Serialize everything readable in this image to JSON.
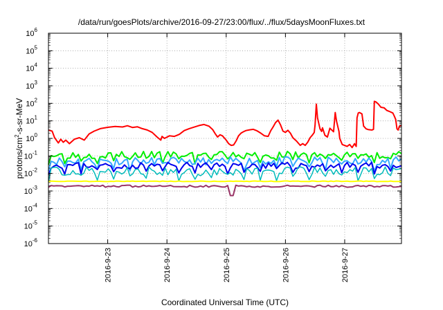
{
  "chart_data": {
    "type": "line",
    "title": "/data/run/goesPlots/archive/2016-09-27/23:00/flux/../flux/5daysMoonFluxes.txt",
    "xlabel": "Coordinated Universal Time (UTC)",
    "ylabel_main": "protons/cm",
    "ylabel_sup": "2",
    "ylabel_tail": "-s-sr-MeV",
    "yscale": "log",
    "ylim": [
      1e-06,
      1000000.0
    ],
    "xlim": [
      "2016-09-22T00:00",
      "2016-09-27T23:00"
    ],
    "grid": true,
    "yticks": [
      {
        "value": 1e-06,
        "base": "10",
        "exp": "-6"
      },
      {
        "value": 1e-05,
        "base": "10",
        "exp": "-5"
      },
      {
        "value": 0.0001,
        "base": "10",
        "exp": "-4"
      },
      {
        "value": 0.001,
        "base": "10",
        "exp": "-3"
      },
      {
        "value": 0.01,
        "base": "10",
        "exp": "-2"
      },
      {
        "value": 0.1,
        "base": "10",
        "exp": "-1"
      },
      {
        "value": 1,
        "base": "10",
        "exp": "0"
      },
      {
        "value": 10.0,
        "base": "10",
        "exp": "1"
      },
      {
        "value": 100.0,
        "base": "10",
        "exp": "2"
      },
      {
        "value": 1000.0,
        "base": "10",
        "exp": "3"
      },
      {
        "value": 10000.0,
        "base": "10",
        "exp": "4"
      },
      {
        "value": 100000.0,
        "base": "10",
        "exp": "5"
      },
      {
        "value": 1000000.0,
        "base": "10",
        "exp": "6"
      }
    ],
    "xticks": [
      {
        "value": "2016-09-23T00:00",
        "label": "2016-9-23"
      },
      {
        "value": "2016-09-24T00:00",
        "label": "2016-9-24"
      },
      {
        "value": "2016-09-25T00:00",
        "label": "2016-9-25"
      },
      {
        "value": "2016-09-26T00:00",
        "label": "2016-9-26"
      },
      {
        "value": "2016-09-27T00:00",
        "label": "2016-9-27"
      }
    ],
    "series": [
      {
        "color": "#ff0000",
        "width": 2,
        "points": [
          [
            "2016-09-22T00:00",
            3
          ],
          [
            "2016-09-22T01:30",
            2.6
          ],
          [
            "2016-09-22T02:30",
            1.1
          ],
          [
            "2016-09-22T04:00",
            0.55
          ],
          [
            "2016-09-22T05:00",
            0.9
          ],
          [
            "2016-09-22T06:00",
            0.6
          ],
          [
            "2016-09-22T07:00",
            0.8
          ],
          [
            "2016-09-22T08:30",
            0.5
          ],
          [
            "2016-09-22T10:30",
            0.9
          ],
          [
            "2016-09-22T12:30",
            1.1
          ],
          [
            "2016-09-22T14:30",
            0.8
          ],
          [
            "2016-09-22T16:30",
            1.8
          ],
          [
            "2016-09-22T18:30",
            2.6
          ],
          [
            "2016-09-22T21:00",
            3.6
          ],
          [
            "2016-09-23T00:00",
            4.3
          ],
          [
            "2016-09-23T03:00",
            4.8
          ],
          [
            "2016-09-23T06:00",
            4.5
          ],
          [
            "2016-09-23T08:00",
            5.3
          ],
          [
            "2016-09-23T10:00",
            4.2
          ],
          [
            "2016-09-23T12:00",
            4.6
          ],
          [
            "2016-09-23T14:00",
            3.6
          ],
          [
            "2016-09-23T16:00",
            3
          ],
          [
            "2016-09-23T18:00",
            2.2
          ],
          [
            "2016-09-23T20:00",
            1.2
          ],
          [
            "2016-09-23T21:30",
            0.8
          ],
          [
            "2016-09-23T22:00",
            1.3
          ],
          [
            "2016-09-23T23:00",
            1
          ],
          [
            "2016-09-24T01:00",
            1.4
          ],
          [
            "2016-09-24T03:00",
            1.3
          ],
          [
            "2016-09-24T05:00",
            1.7
          ],
          [
            "2016-09-24T07:00",
            2.8
          ],
          [
            "2016-09-24T09:00",
            3.6
          ],
          [
            "2016-09-24T11:00",
            4.4
          ],
          [
            "2016-09-24T13:00",
            5.4
          ],
          [
            "2016-09-24T15:00",
            6.2
          ],
          [
            "2016-09-24T17:00",
            5
          ],
          [
            "2016-09-24T18:30",
            3.2
          ],
          [
            "2016-09-24T19:30",
            1.9
          ],
          [
            "2016-09-24T20:30",
            1.2
          ],
          [
            "2016-09-24T21:30",
            1.6
          ],
          [
            "2016-09-24T22:30",
            1.4
          ],
          [
            "2016-09-25T00:00",
            0.8
          ],
          [
            "2016-09-25T01:00",
            0.5
          ],
          [
            "2016-09-25T02:00",
            0.4
          ],
          [
            "2016-09-25T03:00",
            0.42
          ],
          [
            "2016-09-25T04:00",
            0.7
          ],
          [
            "2016-09-25T05:00",
            1.4
          ],
          [
            "2016-09-25T06:00",
            2
          ],
          [
            "2016-09-25T07:00",
            2.4
          ],
          [
            "2016-09-25T08:00",
            2.8
          ],
          [
            "2016-09-25T09:30",
            3.1
          ],
          [
            "2016-09-25T11:00",
            3.3
          ],
          [
            "2016-09-25T12:30",
            2.7
          ],
          [
            "2016-09-25T14:00",
            2
          ],
          [
            "2016-09-25T15:30",
            1.4
          ],
          [
            "2016-09-25T17:00",
            1.3
          ],
          [
            "2016-09-25T18:00",
            2.7
          ],
          [
            "2016-09-25T19:00",
            4.5
          ],
          [
            "2016-09-25T20:00",
            8
          ],
          [
            "2016-09-25T21:00",
            11
          ],
          [
            "2016-09-25T22:00",
            6
          ],
          [
            "2016-09-25T23:00",
            2.6
          ],
          [
            "2016-09-26T00:00",
            2.2
          ],
          [
            "2016-09-26T01:00",
            2.9
          ],
          [
            "2016-09-26T02:00",
            2
          ],
          [
            "2016-09-26T03:00",
            1.1
          ],
          [
            "2016-09-26T04:30",
            0.7
          ],
          [
            "2016-09-26T06:00",
            0.4
          ],
          [
            "2016-09-26T07:00",
            0.5
          ],
          [
            "2016-09-26T08:00",
            0.4
          ],
          [
            "2016-09-26T09:00",
            0.6
          ],
          [
            "2016-09-26T10:00",
            1.1
          ],
          [
            "2016-09-26T11:00",
            1.6
          ],
          [
            "2016-09-26T11:40",
            2.2
          ],
          [
            "2016-09-26T12:00",
            6
          ],
          [
            "2016-09-26T12:30",
            90
          ],
          [
            "2016-09-26T13:00",
            15
          ],
          [
            "2016-09-26T14:00",
            3.5
          ],
          [
            "2016-09-26T14:40",
            2.5
          ],
          [
            "2016-09-26T15:00",
            4
          ],
          [
            "2016-09-26T16:00",
            1.5
          ],
          [
            "2016-09-26T17:00",
            1.2
          ],
          [
            "2016-09-26T18:00",
            3.8
          ],
          [
            "2016-09-26T19:30",
            2.4
          ],
          [
            "2016-09-26T20:10",
            30
          ],
          [
            "2016-09-26T20:40",
            10
          ],
          [
            "2016-09-26T21:10",
            5
          ],
          [
            "2016-09-26T21:40",
            2.5
          ],
          [
            "2016-09-26T22:00",
            1
          ],
          [
            "2016-09-26T23:00",
            0.45
          ],
          [
            "2016-09-27T01:00",
            0.35
          ],
          [
            "2016-09-27T02:00",
            0.45
          ],
          [
            "2016-09-27T03:00",
            0.3
          ],
          [
            "2016-09-27T04:00",
            0.5
          ],
          [
            "2016-09-27T04:40",
            0.35
          ],
          [
            "2016-09-27T05:00",
            15
          ],
          [
            "2016-09-27T05:30",
            28
          ],
          [
            "2016-09-27T06:00",
            30
          ],
          [
            "2016-09-27T07:00",
            25
          ],
          [
            "2016-09-27T07:40",
            5
          ],
          [
            "2016-09-27T08:00",
            4.5
          ],
          [
            "2016-09-27T08:40",
            3.5
          ],
          [
            "2016-09-27T09:30",
            3.2
          ],
          [
            "2016-09-27T11:00",
            3
          ],
          [
            "2016-09-27T11:40",
            3.3
          ],
          [
            "2016-09-27T12:00",
            130
          ],
          [
            "2016-09-27T12:40",
            120
          ],
          [
            "2016-09-27T13:40",
            90
          ],
          [
            "2016-09-27T14:40",
            60
          ],
          [
            "2016-09-27T16:00",
            55
          ],
          [
            "2016-09-27T17:00",
            40
          ],
          [
            "2016-09-27T18:00",
            35
          ],
          [
            "2016-09-27T19:30",
            28
          ],
          [
            "2016-09-27T20:00",
            20
          ],
          [
            "2016-09-27T20:40",
            12
          ],
          [
            "2016-09-27T21:10",
            3.5
          ],
          [
            "2016-09-27T21:40",
            3
          ],
          [
            "2016-09-27T22:10",
            5
          ],
          [
            "2016-09-27T23:00",
            5.2
          ]
        ]
      },
      {
        "color": "#00ee00",
        "width": 2,
        "base": 0.12,
        "amp": 0.4,
        "seed": 3,
        "n": 130
      },
      {
        "color": "#33aaff",
        "width": 2,
        "base": 0.055,
        "amp": 0.45,
        "seed": 11,
        "n": 130
      },
      {
        "color": "#0000ee",
        "width": 2,
        "base": 0.03,
        "amp": 0.35,
        "seed": 23,
        "n": 130
      },
      {
        "color": "#00bbbb",
        "width": 1.5,
        "base": 0.014,
        "amp": 0.5,
        "seed": 37,
        "n": 130
      },
      {
        "color": "#ffff00",
        "width": 2,
        "base": 0.0036,
        "amp": 0.04,
        "seed": 51,
        "n": 130
      },
      {
        "color": "#993366",
        "width": 2,
        "base": 0.0019,
        "amp": 0.12,
        "seed": 67,
        "n": 130,
        "dip": [
          "2016-09-25T02:00",
          0.00055
        ]
      }
    ]
  }
}
